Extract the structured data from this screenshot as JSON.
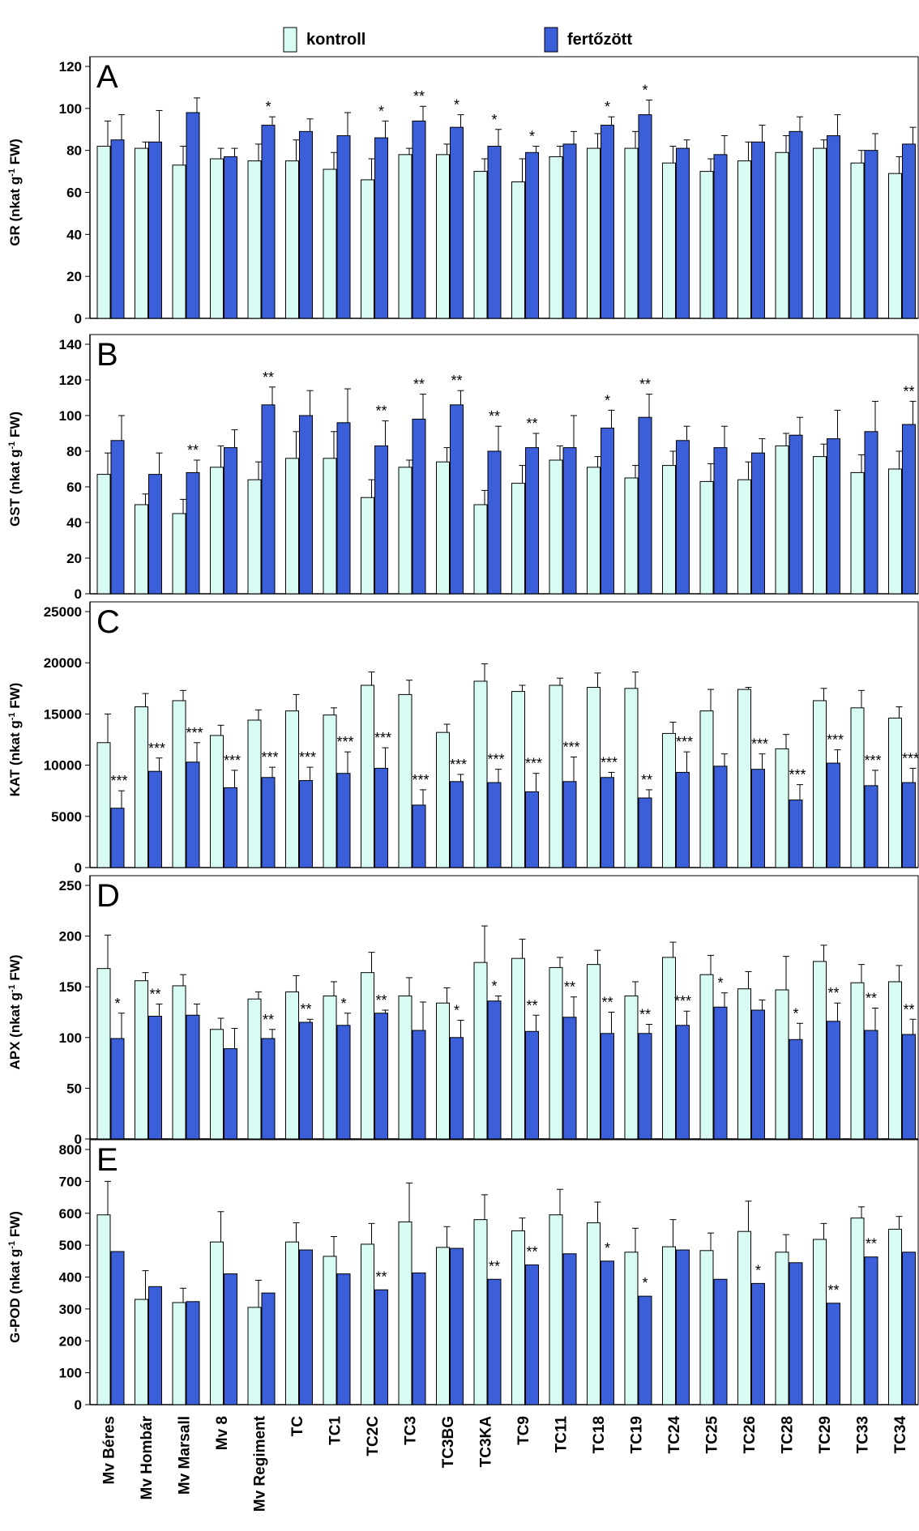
{
  "legend": {
    "items": [
      {
        "label": "kontroll",
        "color": "#d8fbf3"
      },
      {
        "label": "fertőzött",
        "color": "#3a5fd9"
      }
    ]
  },
  "chart_data": {
    "type": "bar",
    "categories": [
      "Mv Béres",
      "Mv Hombár",
      "Mv Marsall",
      "Mv 8",
      "Mv Regiment",
      "TC",
      "TC1",
      "TC2C",
      "TC3",
      "TC3BG",
      "TC3KA",
      "TC9",
      "TC11",
      "TC18",
      "TC19",
      "TC24",
      "TC25",
      "TC26",
      "TC28",
      "TC29",
      "TC33",
      "TC34"
    ],
    "panels": [
      {
        "letter": "A",
        "ylabel": "GR (nkat g-1 FW)",
        "ylabel_base": "GR (nkat g",
        "ylabel_sup": "-1",
        "ylabel_end": " FW)",
        "ylim": [
          0,
          120
        ],
        "yticks": [
          0,
          20,
          40,
          60,
          80,
          100,
          120
        ],
        "series": [
          {
            "name": "kontroll",
            "values": [
              82,
              81,
              73,
              76,
              75,
              75,
              71,
              66,
              78,
              78,
              70,
              65,
              77,
              81,
              81,
              74,
              70,
              75,
              79,
              81,
              74,
              69
            ],
            "errors": [
              12,
              3,
              9,
              5,
              8,
              10,
              8,
              10,
              3,
              5,
              6,
              11,
              5,
              7,
              8,
              8,
              6,
              9,
              8,
              4,
              6,
              8
            ]
          },
          {
            "name": "fertőzött",
            "values": [
              85,
              84,
              98,
              77,
              92,
              89,
              87,
              86,
              94,
              91,
              82,
              79,
              83,
              92,
              97,
              81,
              78,
              84,
              89,
              87,
              80,
              83
            ],
            "errors": [
              12,
              15,
              7,
              4,
              4,
              6,
              11,
              8,
              7,
              6,
              8,
              3,
              6,
              4,
              7,
              4,
              9,
              8,
              7,
              10,
              8,
              8
            ]
          }
        ],
        "significance": [
          "",
          "",
          "",
          "",
          "*",
          "",
          "",
          "*",
          "**",
          "*",
          "*",
          "*",
          "",
          "*",
          "*",
          "",
          "",
          "",
          "",
          "",
          "",
          ""
        ]
      },
      {
        "letter": "B",
        "ylabel": "GST (nkat g-1 FW)",
        "ylabel_base": "GST (nkat g",
        "ylabel_sup": "-1",
        "ylabel_end": " FW)",
        "ylim": [
          0,
          140
        ],
        "yticks": [
          0,
          20,
          40,
          60,
          80,
          100,
          120,
          140
        ],
        "series": [
          {
            "name": "kontroll",
            "values": [
              67,
              50,
              45,
              71,
              64,
              76,
              76,
              54,
              71,
              74,
              50,
              62,
              75,
              71,
              65,
              72,
              63,
              64,
              83,
              77,
              68,
              70
            ],
            "errors": [
              12,
              6,
              8,
              12,
              10,
              15,
              15,
              10,
              4,
              8,
              8,
              10,
              8,
              6,
              7,
              8,
              10,
              10,
              7,
              7,
              10,
              10
            ]
          },
          {
            "name": "fertőzött",
            "values": [
              86,
              67,
              68,
              82,
              106,
              100,
              96,
              83,
              98,
              106,
              80,
              82,
              82,
              93,
              99,
              86,
              82,
              79,
              89,
              87,
              91,
              95
            ],
            "errors": [
              14,
              12,
              7,
              10,
              10,
              14,
              19,
              14,
              14,
              8,
              14,
              8,
              18,
              10,
              13,
              8,
              12,
              8,
              10,
              16,
              17,
              13
            ]
          }
        ],
        "significance": [
          "",
          "",
          "**",
          "",
          "**",
          "",
          "",
          "**",
          "**",
          "**",
          "**",
          "**",
          "",
          "*",
          "**",
          "",
          "",
          "",
          "",
          "",
          "",
          "**"
        ]
      },
      {
        "letter": "C",
        "ylabel": "KAT (nkat g-1 FW)",
        "ylabel_base": "KAT (nkat g",
        "ylabel_sup": "-1",
        "ylabel_end": " FW)",
        "ylim": [
          0,
          25000
        ],
        "yticks": [
          0,
          5000,
          10000,
          15000,
          20000,
          25000
        ],
        "series": [
          {
            "name": "kontroll",
            "values": [
              12200,
              15700,
              16300,
              12900,
              14400,
              15300,
              14900,
              17800,
              16900,
              13200,
              18200,
              17200,
              17800,
              17600,
              17500,
              13100,
              15300,
              17400,
              11600,
              16300,
              15600,
              14600
            ],
            "errors": [
              2800,
              1300,
              1000,
              1000,
              1000,
              1600,
              700,
              1300,
              1400,
              800,
              1700,
              600,
              700,
              1400,
              1600,
              1100,
              2100,
              200,
              1400,
              1200,
              1700,
              1100
            ]
          },
          {
            "name": "fertőzött",
            "values": [
              5800,
              9400,
              10300,
              7800,
              8800,
              8500,
              9200,
              9700,
              6100,
              8400,
              8300,
              7400,
              8400,
              8800,
              6800,
              9300,
              9900,
              9600,
              6600,
              10200,
              8000,
              8300
            ],
            "errors": [
              1700,
              1300,
              1900,
              1700,
              1000,
              1300,
              2100,
              2000,
              1500,
              700,
              1300,
              1800,
              2400,
              500,
              800,
              2000,
              1200,
              1500,
              1500,
              1300,
              1500,
              1400
            ]
          }
        ],
        "significance": [
          "***",
          "***",
          "***",
          "***",
          "***",
          "***",
          "***",
          "***",
          "***",
          "***",
          "***",
          "***",
          "***",
          "***",
          "**",
          "***",
          "",
          "***",
          "***",
          "***",
          "***",
          "***"
        ]
      },
      {
        "letter": "D",
        "ylabel": "APX (nkat g-1 FW)",
        "ylabel_base": "APX (nkat g",
        "ylabel_sup": "-1",
        "ylabel_end": " FW)",
        "ylim": [
          0,
          250
        ],
        "yticks": [
          0,
          50,
          100,
          150,
          200,
          250
        ],
        "series": [
          {
            "name": "kontroll",
            "values": [
              168,
              156,
              151,
              108,
              138,
              145,
              141,
              164,
              141,
              134,
              174,
              178,
              169,
              172,
              141,
              179,
              162,
              148,
              147,
              175,
              154,
              155
            ],
            "errors": [
              33,
              8,
              11,
              11,
              7,
              16,
              14,
              20,
              18,
              15,
              36,
              19,
              10,
              14,
              14,
              15,
              19,
              17,
              33,
              16,
              18,
              16
            ]
          },
          {
            "name": "fertőzött",
            "values": [
              99,
              121,
              122,
              89,
              99,
              115,
              112,
              124,
              107,
              100,
              136,
              106,
              120,
              104,
              104,
              112,
              130,
              127,
              98,
              116,
              107,
              103
            ],
            "errors": [
              25,
              12,
              11,
              20,
              9,
              3,
              12,
              3,
              28,
              17,
              5,
              16,
              20,
              21,
              9,
              14,
              14,
              10,
              16,
              18,
              22,
              15
            ]
          }
        ],
        "significance": [
          "*",
          "**",
          "",
          "",
          "**",
          "**",
          "*",
          "**",
          "",
          "*",
          "*",
          "**",
          "**",
          "**",
          "**",
          "***",
          "*",
          "",
          "*",
          "**",
          "**",
          "**"
        ]
      },
      {
        "letter": "E",
        "ylabel": "G-POD (nkat g-1 FW)",
        "ylabel_base": "G-POD (nkat g",
        "ylabel_sup": "-1",
        "ylabel_end": " FW)",
        "ylim": [
          0,
          800
        ],
        "yticks": [
          0,
          100,
          200,
          300,
          400,
          500,
          600,
          700,
          800
        ],
        "series": [
          {
            "name": "kontroll",
            "values": [
              595,
              330,
              320,
              510,
              305,
              510,
              465,
              503,
              573,
              493,
              580,
              545,
              595,
              570,
              478,
              495,
              483,
              543,
              478,
              518,
              585,
              550
            ],
            "errors": [
              105,
              90,
              45,
              95,
              85,
              60,
              62,
              65,
              122,
              65,
              78,
              40,
              80,
              65,
              75,
              85,
              55,
              95,
              55,
              50,
              35,
              40
            ]
          },
          {
            "name": "fertőzött",
            "values": [
              480,
              370,
              323,
              410,
              350,
              485,
              410,
              360,
              413,
              490,
              393,
              438,
              473,
              450,
              340,
              485,
              393,
              380,
              445,
              318,
              463,
              478
            ]
          }
        ],
        "significance": [
          "",
          "",
          "",
          "",
          "",
          "",
          "",
          "**",
          "",
          "",
          "**",
          "**",
          "",
          "*",
          "*",
          "",
          "",
          "*",
          "",
          "**",
          "**",
          ""
        ]
      }
    ]
  }
}
